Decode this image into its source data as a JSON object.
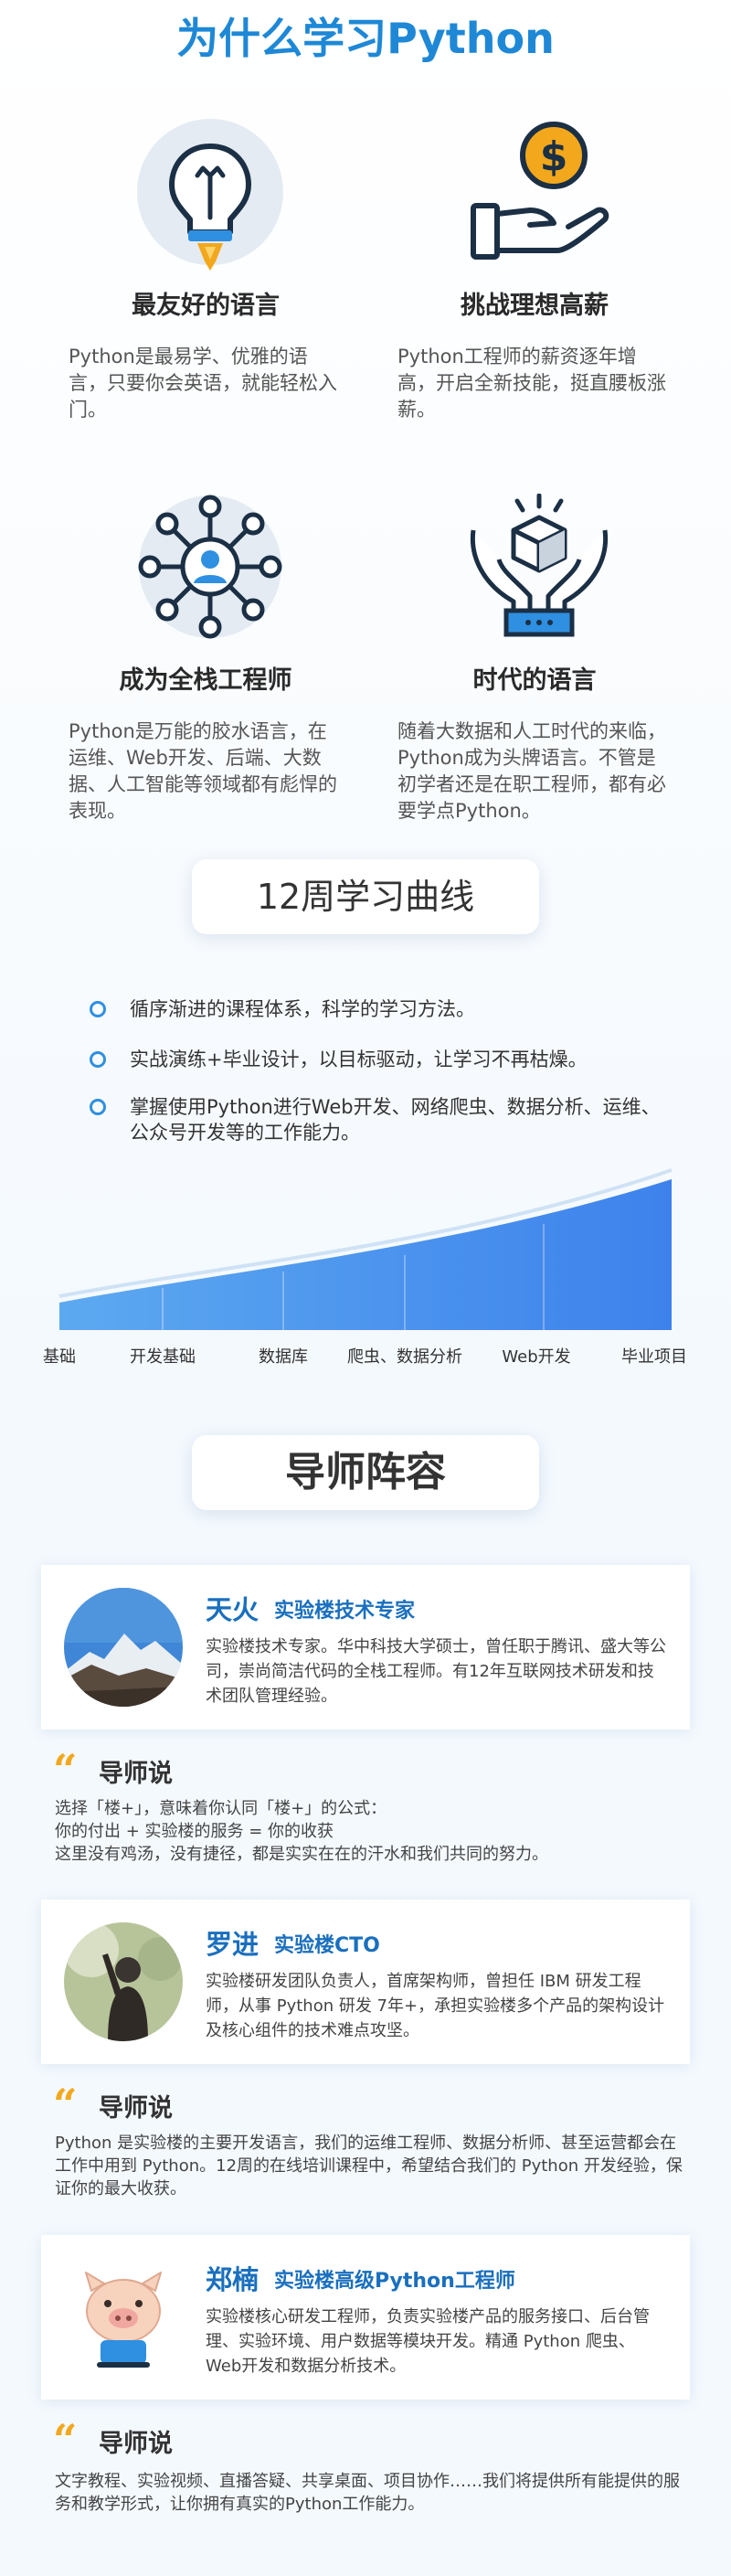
{
  "main_title": "为什么学习Python",
  "reasons": [
    {
      "title": "最友好的语言",
      "desc": "Python是最易学、优雅的语言，只要你会英语，就能轻松入门。"
    },
    {
      "title": "挑战理想高薪",
      "desc": "Python工程师的薪资逐年增高，开启全新技能，挺直腰板涨薪。"
    },
    {
      "title": "成为全栈工程师",
      "desc": "Python是万能的胶水语言，在运维、Web开发、后端、大数据、人工智能等领域都有彪悍的表现。"
    },
    {
      "title": "时代的语言",
      "desc": "随着大数据和人工时代的来临，Python成为头牌语言。不管是初学者还是在职工程师，都有必要学点Python。"
    }
  ],
  "curve_section": {
    "title": "12周学习曲线",
    "bullets": [
      "循序渐进的课程体系，科学的学习方法。",
      "实战演练+毕业设计，以目标驱动，让学习不再枯燥。",
      "掌握使用Python进行Web开发、网络爬虫、数据分析、运维、公众号开发等的工作能力。"
    ],
    "stages": [
      "基础",
      "开发基础",
      "数据库",
      "爬虫、数据分析",
      "Web开发",
      "毕业项目"
    ]
  },
  "mentor_section": {
    "title": "导师阵容",
    "says_label": "导师说",
    "mentors": [
      {
        "name": "天火",
        "role": "实验楼技术专家",
        "bio": "实验楼技术专家。华中科技大学硕士，曾任职于腾讯、盛大等公司，崇尚简洁代码的全栈工程师。有12年互联网技术研发和技术团队管理经验。",
        "quote_lines": [
          "选择「楼+」，意味着你认同「楼+」的公式：",
          "你的付出 + 实验楼的服务 = 你的收获",
          "这里没有鸡汤，没有捷径，都是实实在在的汗水和我们共同的努力。"
        ]
      },
      {
        "name": "罗进",
        "role": "实验楼CTO",
        "bio": "实验楼研发团队负责人，首席架构师，曾担任 IBM 研发工程师，从事 Python 研发 7年+，承担实验楼多个产品的架构设计及核心组件的技术难点攻坚。",
        "quote_lines": [
          "Python 是实验楼的主要开发语言，我们的运维工程师、数据分析师、甚至运营都会在工作中用到 Python。12周的在线培训课程中，希望结合我们的 Python 开发经验，保证你的最大收获。"
        ]
      },
      {
        "name": "郑楠",
        "role": "实验楼高级Python工程师",
        "bio": "实验楼核心研发工程师，负责实验楼产品的服务接口、后台管理、实验环境、用户数据等模块开发。精通 Python 爬虫、Web开发和数据分析技术。",
        "quote_lines": [
          "文字教程、实验视频、直播答疑、共享桌面、项目协作……我们将提供所有能提供的服务和教学形式，让你拥有真实的Python工作能力。"
        ]
      }
    ]
  },
  "colors": {
    "title_blue": "#1e88d6",
    "dark_navy": "#1b2f45",
    "icon_blue": "#2f8fe0",
    "accent_orange": "#f2a71c",
    "mentor_blue": "#1a6fbe"
  },
  "icons": [
    "lightbulb-rocket-icon",
    "coin-hand-icon",
    "network-person-icon",
    "hands-cube-icon",
    "quote-icon"
  ]
}
